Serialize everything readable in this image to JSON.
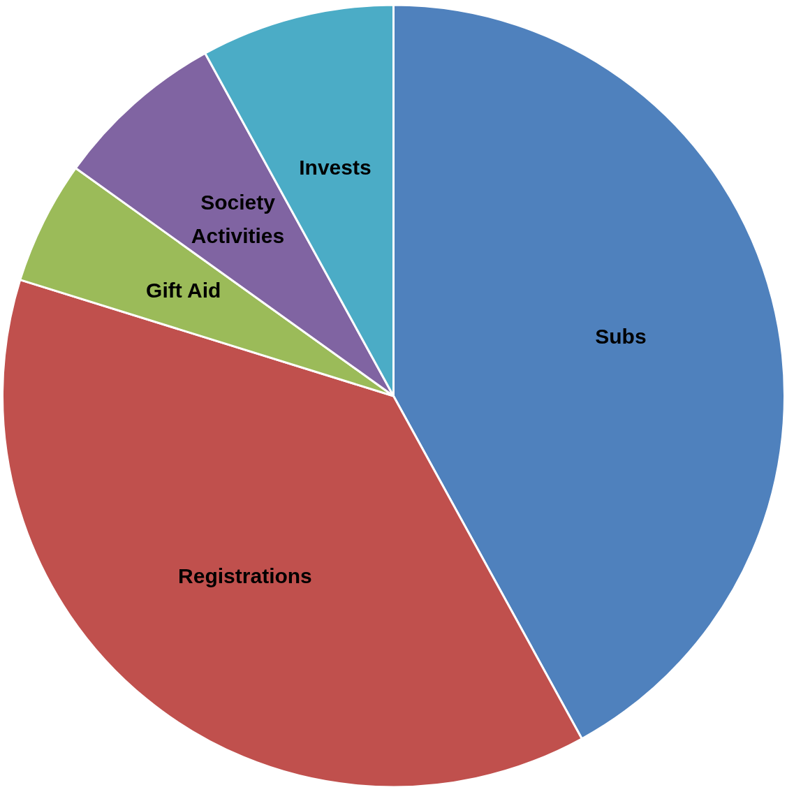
{
  "chart_data": {
    "type": "pie",
    "categories": [
      "Subs",
      "Registrations",
      "Gift Aid",
      "Society Activities",
      "Invests"
    ],
    "values": [
      42.0,
      37.8,
      5.1,
      7.1,
      8.0
    ],
    "colors": [
      "#4f81bd",
      "#c0504d",
      "#9bbb59",
      "#8064a2",
      "#4bacc6"
    ],
    "legend": false
  }
}
